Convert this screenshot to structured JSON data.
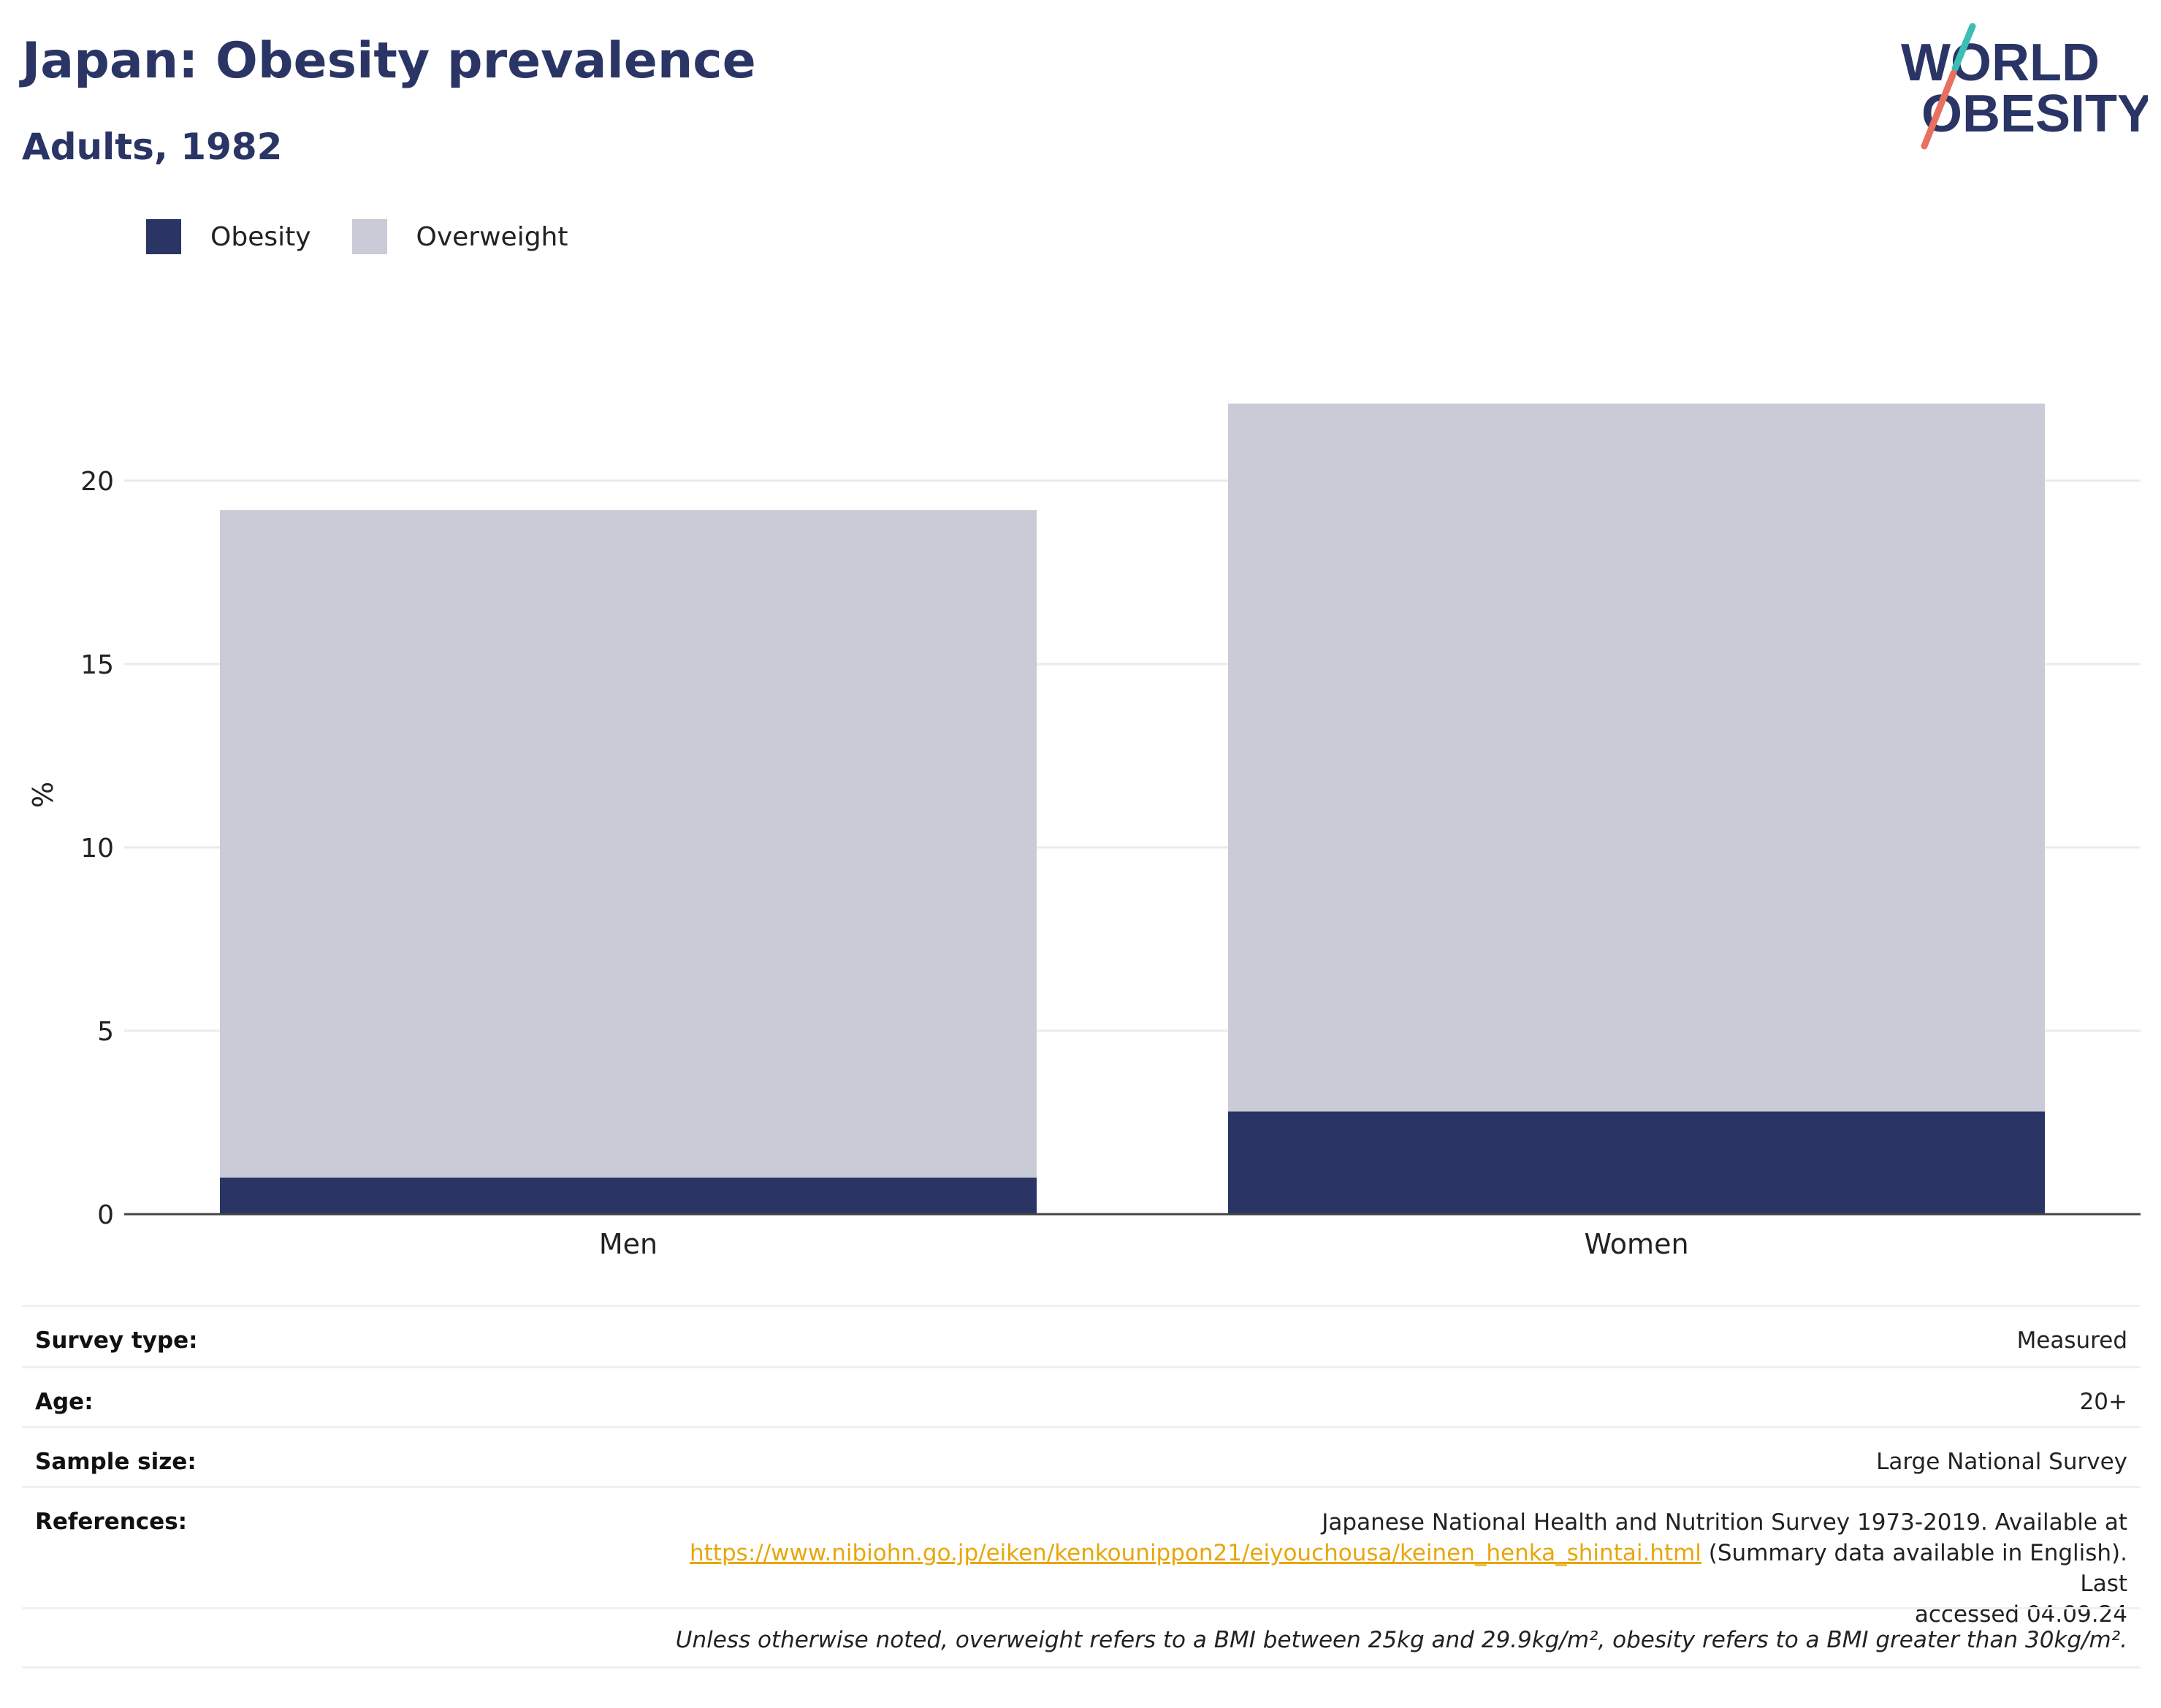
{
  "header": {
    "title": "Japan: Obesity prevalence",
    "subtitle": "Adults, 1982"
  },
  "logo": {
    "line1": "WORLD",
    "line2": "OBESITY",
    "text_color": "#2a3565",
    "accent_teal": "#3bbfb4",
    "accent_coral": "#e8705f"
  },
  "colors": {
    "obesity": "#2a3565",
    "overweight": "#c9cbd6",
    "axis": "#444444",
    "grid": "#eaebf2",
    "link": "#e8a60a"
  },
  "chart_data": {
    "type": "bar",
    "stacked": true,
    "categories": [
      "Men",
      "Women"
    ],
    "series": [
      {
        "name": "Obesity",
        "values": [
          1.0,
          2.8
        ]
      },
      {
        "name": "Overweight",
        "values": [
          18.2,
          19.3
        ]
      }
    ],
    "ylabel": "%",
    "xlabel": "",
    "ylim": [
      0,
      22
    ],
    "yticks": [
      0,
      5,
      10,
      15,
      20
    ],
    "grid": true,
    "legend_position": "top-left"
  },
  "info": {
    "survey_type_label": "Survey type:",
    "survey_type_value": "Measured",
    "age_label": "Age:",
    "age_value": "20+",
    "sample_size_label": "Sample size:",
    "sample_size_value": "Large National Survey",
    "references_label": "References:",
    "references_line1": "Japanese National Health and Nutrition Survey 1973-2019. Available at",
    "references_link": "https://www.nibiohn.go.jp/eiken/kenkounippon21/eiyouchousa/keinen_henka_shintai.html",
    "references_after_link": " (Summary data available in English). Last",
    "references_line3": "accessed 04.09.24",
    "note": "Unless otherwise noted, overweight refers to a BMI between 25kg and 29.9kg/m², obesity refers to a BMI greater than 30kg/m²."
  }
}
